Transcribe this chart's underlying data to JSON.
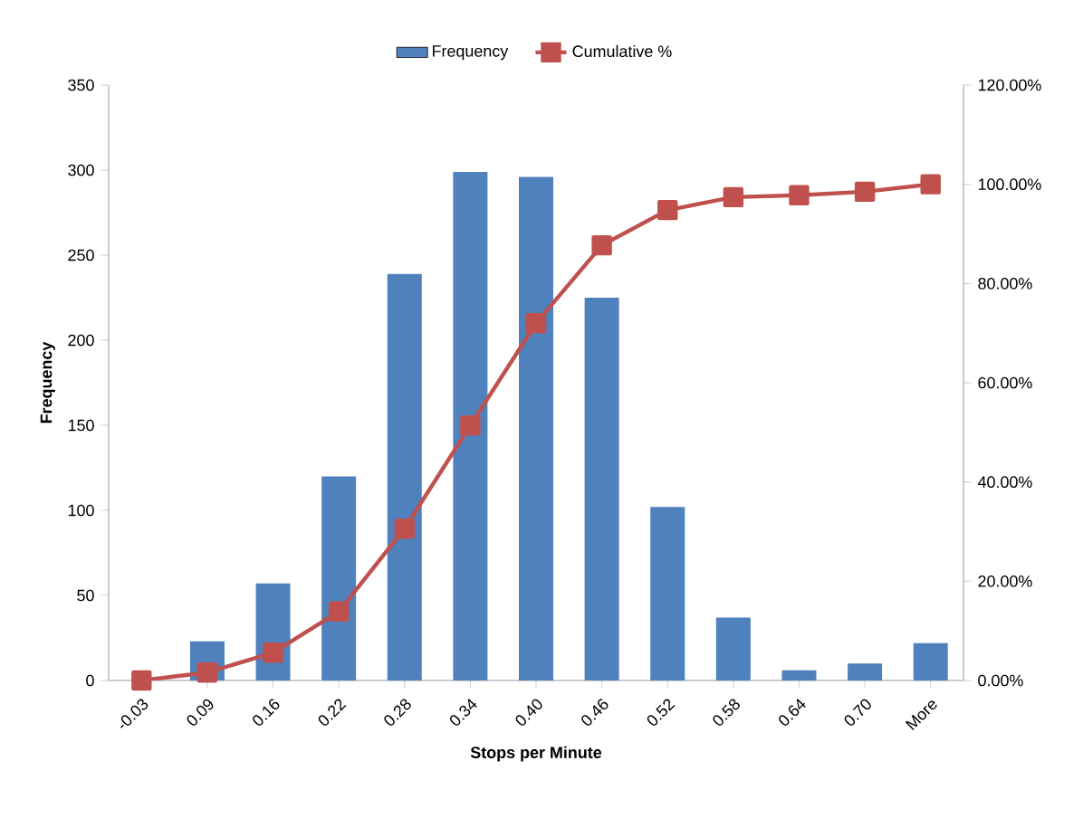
{
  "chart_data": {
    "type": "bar",
    "xlabel": "Stops per Minute",
    "ylabel": "Frequency",
    "categories": [
      "-0.03",
      "0.09",
      "0.16",
      "0.22",
      "0.28",
      "0.34",
      "0.40",
      "0.46",
      "0.52",
      "0.58",
      "0.64",
      "0.70",
      "More"
    ],
    "series": [
      {
        "name": "Frequency",
        "color": "#4f81bd",
        "values": [
          0,
          23,
          57,
          120,
          239,
          299,
          296,
          225,
          102,
          37,
          6,
          10,
          22
        ]
      },
      {
        "name": "Cumulative %",
        "type": "line",
        "axis": "y2",
        "marker": "square",
        "color": "#c0504d",
        "values": [
          0,
          1.6,
          5.6,
          13.9,
          30.6,
          51.4,
          72.0,
          87.7,
          94.8,
          97.4,
          97.8,
          98.5,
          100
        ]
      }
    ],
    "ylim": [
      0,
      350
    ],
    "yticks": [
      0,
      50,
      100,
      150,
      200,
      250,
      300,
      350
    ],
    "y2lim": [
      0,
      120
    ],
    "y2ticks": [
      {
        "value": 0,
        "label": "0.00%"
      },
      {
        "value": 20,
        "label": "20.00%"
      },
      {
        "value": 40,
        "label": "40.00%"
      },
      {
        "value": 60,
        "label": "60.00%"
      },
      {
        "value": 80,
        "label": "80.00%"
      },
      {
        "value": 100,
        "label": "100.00%"
      },
      {
        "value": 120,
        "label": "120.00%"
      }
    ],
    "legend": "top",
    "grid": false
  }
}
